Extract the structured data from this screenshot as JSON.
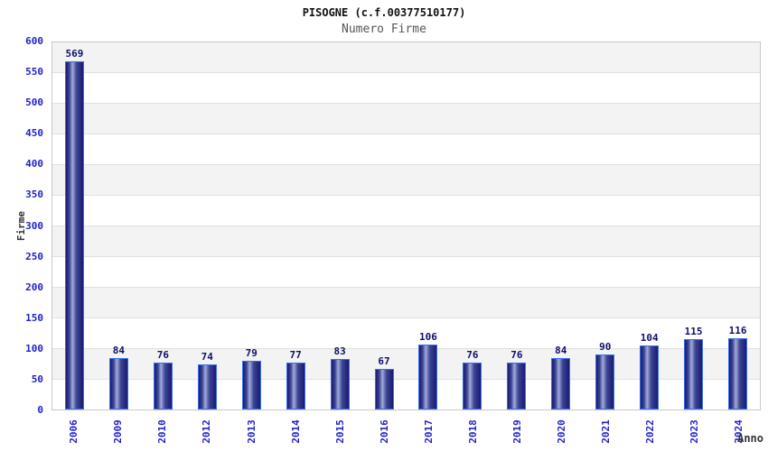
{
  "title": "PISOGNE (c.f.00377510177)",
  "subtitle": "Numero Firme",
  "chart_data": {
    "type": "bar",
    "title": "PISOGNE (c.f.00377510177)",
    "subtitle": "Numero Firme",
    "xlabel": "Anno",
    "ylabel": "Firme",
    "categories": [
      "2006",
      "2009",
      "2010",
      "2012",
      "2013",
      "2014",
      "2015",
      "2016",
      "2017",
      "2018",
      "2019",
      "2020",
      "2021",
      "2022",
      "2023",
      "2024"
    ],
    "values": [
      569,
      84,
      76,
      74,
      79,
      77,
      83,
      67,
      106,
      76,
      76,
      84,
      90,
      104,
      115,
      116
    ],
    "ylim": [
      0,
      600
    ],
    "ytick_step": 50,
    "grid": "horizontal-alternating-bands",
    "legend": "none",
    "colors": {
      "bar_dark": "#1a1a72",
      "bar_mid": "#3c4494",
      "bar_highlight": "#a0aad8",
      "bar_border": "#3a6fe8",
      "tick_label": "#2222cc",
      "value_label": "#10106a",
      "band_gray": "#f3f3f3",
      "band_white": "#ffffff",
      "gridline": "#e0e0e0",
      "plot_border": "#c8c8c8",
      "subtitle_color": "#555555",
      "axis_title_color": "#333333"
    }
  }
}
